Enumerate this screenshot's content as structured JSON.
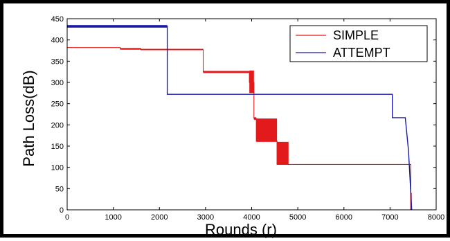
{
  "chart_data": {
    "type": "line",
    "title": "",
    "xlabel": "Rounds (r)",
    "ylabel": "Path Loss(dB)",
    "xlim": [
      0,
      8000
    ],
    "ylim": [
      0,
      450
    ],
    "x_ticks": [
      "0",
      "1000",
      "2000",
      "3000",
      "4000",
      "5000",
      "6000",
      "7000",
      "8000"
    ],
    "y_ticks": [
      "0",
      "50",
      "100",
      "150",
      "200",
      "250",
      "300",
      "350",
      "400",
      "450"
    ],
    "grid": false,
    "legend_position": "top-right",
    "series": [
      {
        "name": "SIMPLE",
        "color": "#e31a1c",
        "points": [
          [
            0,
            382
          ],
          [
            1150,
            382
          ],
          [
            1150,
            379
          ],
          [
            1600,
            379
          ],
          [
            1600,
            377
          ],
          [
            2950,
            377
          ],
          [
            2950,
            325
          ],
          [
            3950,
            325
          ],
          [
            3950,
            300
          ],
          [
            4050,
            300
          ],
          [
            4050,
            215
          ],
          [
            4100,
            215
          ],
          [
            4100,
            162
          ],
          [
            4550,
            162
          ],
          [
            4550,
            107
          ],
          [
            7450,
            107
          ],
          [
            7450,
            0
          ]
        ]
      },
      {
        "name": "ATTEMPT",
        "color": "#1a1aa6",
        "points": [
          [
            0,
            432
          ],
          [
            2170,
            432
          ],
          [
            2170,
            272
          ],
          [
            7050,
            272
          ],
          [
            7050,
            217
          ],
          [
            7330,
            217
          ],
          [
            7400,
            140
          ],
          [
            7470,
            0
          ]
        ]
      }
    ],
    "thick_bands": [
      {
        "series": "SIMPLE",
        "x0": 1150,
        "x1": 1600,
        "y0": 377,
        "y1": 381
      },
      {
        "series": "SIMPLE",
        "x0": 1600,
        "x1": 2950,
        "y0": 376,
        "y1": 379
      },
      {
        "series": "SIMPLE",
        "x0": 2950,
        "x1": 3950,
        "y0": 322,
        "y1": 327
      },
      {
        "series": "SIMPLE",
        "x0": 3950,
        "x1": 4050,
        "y0": 275,
        "y1": 328
      },
      {
        "series": "SIMPLE",
        "x0": 4050,
        "x1": 4100,
        "y0": 212,
        "y1": 218
      },
      {
        "series": "SIMPLE",
        "x0": 4100,
        "x1": 4550,
        "y0": 160,
        "y1": 215
      },
      {
        "series": "SIMPLE",
        "x0": 4550,
        "x1": 4800,
        "y0": 106,
        "y1": 160
      },
      {
        "series": "SIMPLE",
        "x0": 7440,
        "x1": 7470,
        "y0": 0,
        "y1": 40
      },
      {
        "series": "ATTEMPT",
        "x0": 0,
        "x1": 2170,
        "y0": 429,
        "y1": 435
      }
    ]
  }
}
